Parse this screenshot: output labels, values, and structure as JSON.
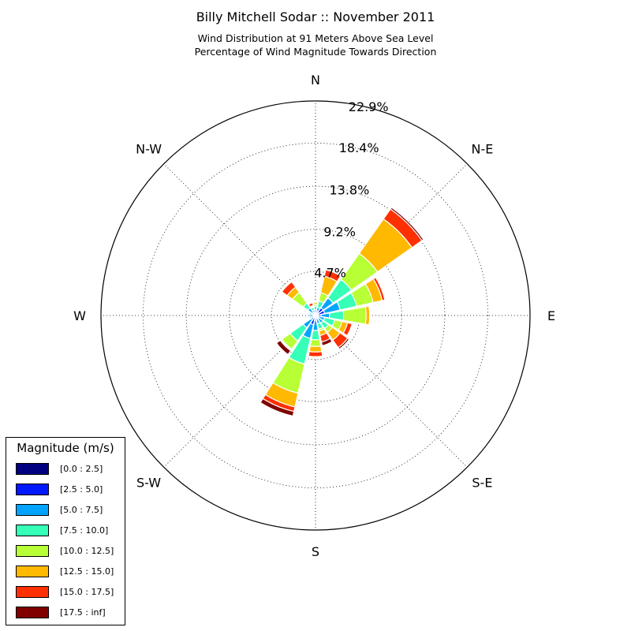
{
  "chart_data": {
    "type": "windrose",
    "title": "Billy Mitchell Sodar :: November 2011",
    "subtitle_lines": [
      "Wind Distribution at 91 Meters Above Sea Level",
      "Percentage of Wind Magnitude Towards Direction"
    ],
    "directions": [
      "N",
      "N-E",
      "E",
      "S-E",
      "S",
      "S-W",
      "W",
      "N-W"
    ],
    "radial_ticks": [
      "4.7%",
      "9.2%",
      "13.8%",
      "18.4%",
      "22.9%"
    ],
    "radial_tick_values": [
      4.7,
      9.2,
      13.8,
      18.4,
      22.9
    ],
    "rmax": 22.9,
    "bins_count": 16,
    "legend_title": "Magnitude (m/s)",
    "magnitude_bins": [
      {
        "label": "[0.0 : 2.5]",
        "color": "#000080"
      },
      {
        "label": "[2.5 : 5.0]",
        "color": "#0018ff"
      },
      {
        "label": "[5.0 : 7.5]",
        "color": "#00a4ff"
      },
      {
        "label": "[7.5 : 10.0]",
        "color": "#36ffb8"
      },
      {
        "label": "[10.0 : 12.5]",
        "color": "#b8ff36"
      },
      {
        "label": "[12.5 : 15.0]",
        "color": "#ffb900"
      },
      {
        "label": "[15.0 : 17.5]",
        "color": "#ff3000"
      },
      {
        "label": "[17.5 : inf]",
        "color": "#800000"
      }
    ],
    "sectors": [
      {
        "direction_deg": 0,
        "cumulative_pct": [
          0.1,
          0.3,
          0.6,
          1.0,
          1.2,
          1.4,
          1.5,
          1.6
        ]
      },
      {
        "direction_deg": 22.5,
        "cumulative_pct": [
          0.2,
          0.5,
          0.9,
          1.6,
          2.5,
          4.3,
          5.0,
          5.1
        ]
      },
      {
        "direction_deg": 45,
        "cumulative_pct": [
          0.4,
          1.0,
          2.3,
          4.7,
          8.1,
          12.6,
          13.9,
          14.1
        ]
      },
      {
        "direction_deg": 67.5,
        "cumulative_pct": [
          0.3,
          1.0,
          2.7,
          4.5,
          6.3,
          7.3,
          7.6,
          7.7
        ]
      },
      {
        "direction_deg": 90,
        "cumulative_pct": [
          0.2,
          0.6,
          1.5,
          3.0,
          5.4,
          5.8,
          5.85,
          5.9
        ]
      },
      {
        "direction_deg": 112.5,
        "cumulative_pct": [
          0.1,
          0.3,
          1.0,
          2.1,
          2.9,
          3.5,
          4.0,
          4.1
        ]
      },
      {
        "direction_deg": 135,
        "cumulative_pct": [
          0.1,
          0.4,
          1.0,
          1.7,
          2.2,
          3.2,
          4.2,
          4.4
        ]
      },
      {
        "direction_deg": 157.5,
        "cumulative_pct": [
          0.1,
          0.3,
          0.9,
          1.5,
          1.7,
          2.2,
          2.9,
          3.3
        ]
      },
      {
        "direction_deg": 180,
        "cumulative_pct": [
          0.1,
          0.5,
          1.6,
          2.6,
          3.3,
          3.9,
          4.4,
          4.5
        ]
      },
      {
        "direction_deg": 202.5,
        "cumulative_pct": [
          0.3,
          1.0,
          2.5,
          5.3,
          8.5,
          10.0,
          10.5,
          11.0
        ]
      },
      {
        "direction_deg": 225,
        "cumulative_pct": [
          0.2,
          0.6,
          1.6,
          3.3,
          4.4,
          4.5,
          4.6,
          5.1
        ]
      },
      {
        "direction_deg": 247.5,
        "cumulative_pct": [
          0.1,
          0.3,
          0.5,
          0.7,
          0.8,
          0.8,
          0.8,
          0.8
        ]
      },
      {
        "direction_deg": 270,
        "cumulative_pct": [
          0.2,
          0.6,
          0.8,
          0.9,
          0.9,
          0.9,
          0.9,
          0.9
        ]
      },
      {
        "direction_deg": 292.5,
        "cumulative_pct": [
          0.1,
          0.3,
          0.5,
          0.7,
          0.8,
          0.8,
          0.8,
          0.8
        ]
      },
      {
        "direction_deg": 315,
        "cumulative_pct": [
          0.1,
          0.4,
          1.0,
          1.6,
          3.0,
          3.7,
          4.4,
          4.5
        ]
      },
      {
        "direction_deg": 337.5,
        "cumulative_pct": [
          0.1,
          0.3,
          0.6,
          0.9,
          1.0,
          1.1,
          1.4,
          1.5
        ]
      }
    ]
  }
}
